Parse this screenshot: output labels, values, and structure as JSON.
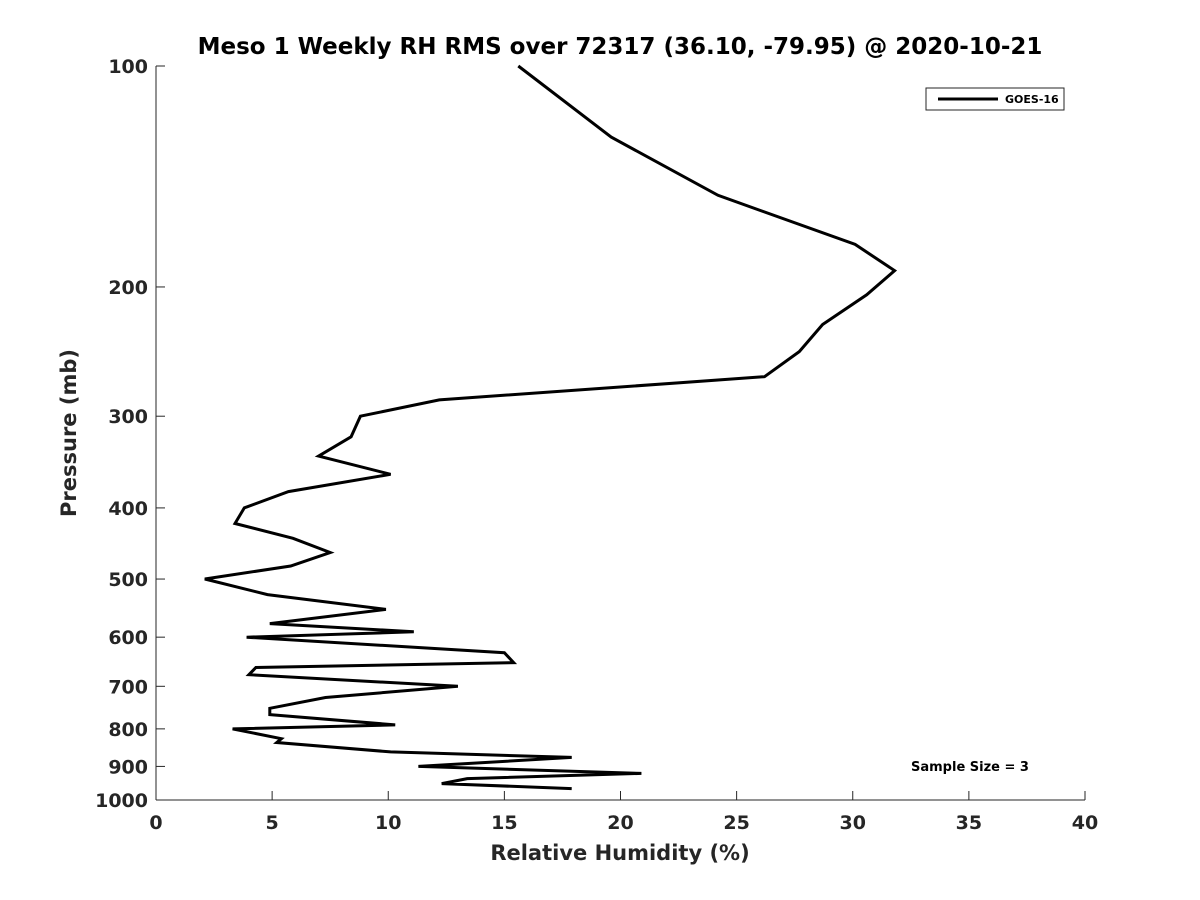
{
  "chart_data": {
    "type": "line",
    "title": "Meso 1 Weekly RH RMS over 72317 (36.10, -79.95) @ 2020-10-21",
    "xlabel": "Relative Humidity (%)",
    "ylabel": "Pressure (mb)",
    "xlim": [
      0,
      40
    ],
    "ylim": [
      100,
      1000
    ],
    "y_scale": "log",
    "y_reversed": true,
    "grid": false,
    "x_ticks": [
      "0",
      "5",
      "10",
      "15",
      "20",
      "25",
      "30",
      "35",
      "40"
    ],
    "y_ticks": [
      "100",
      "200",
      "300",
      "400",
      "500",
      "600",
      "700",
      "800",
      "900",
      "1000"
    ],
    "legend": {
      "position": "top-right",
      "entries": [
        "GOES-16"
      ]
    },
    "annotations": [
      "Sample Size = 3"
    ],
    "series": [
      {
        "name": "GOES-16",
        "color": "#000000",
        "x": [
          15.6,
          19.6,
          24.2,
          30.1,
          31.8,
          30.6,
          28.7,
          27.7,
          26.2,
          12.2,
          8.8,
          8.4,
          7.0,
          10.1,
          5.7,
          3.8,
          3.4,
          5.9,
          7.5,
          5.8,
          2.1,
          4.8,
          9.9,
          4.9,
          11.1,
          3.9,
          15.0,
          15.4,
          4.3,
          4.0,
          13.0,
          7.3,
          4.9,
          4.9,
          10.3,
          3.3,
          5.4,
          5.2,
          10.1,
          17.9,
          11.3,
          20.9,
          13.4,
          12.3,
          17.9
        ],
        "y": [
          100,
          125,
          150,
          175,
          190,
          205,
          225,
          245,
          265,
          285,
          300,
          320,
          340,
          360,
          380,
          400,
          420,
          440,
          460,
          480,
          500,
          525,
          550,
          575,
          590,
          600,
          630,
          650,
          660,
          675,
          700,
          725,
          750,
          765,
          790,
          800,
          825,
          835,
          860,
          875,
          900,
          920,
          935,
          950,
          965
        ]
      }
    ]
  }
}
